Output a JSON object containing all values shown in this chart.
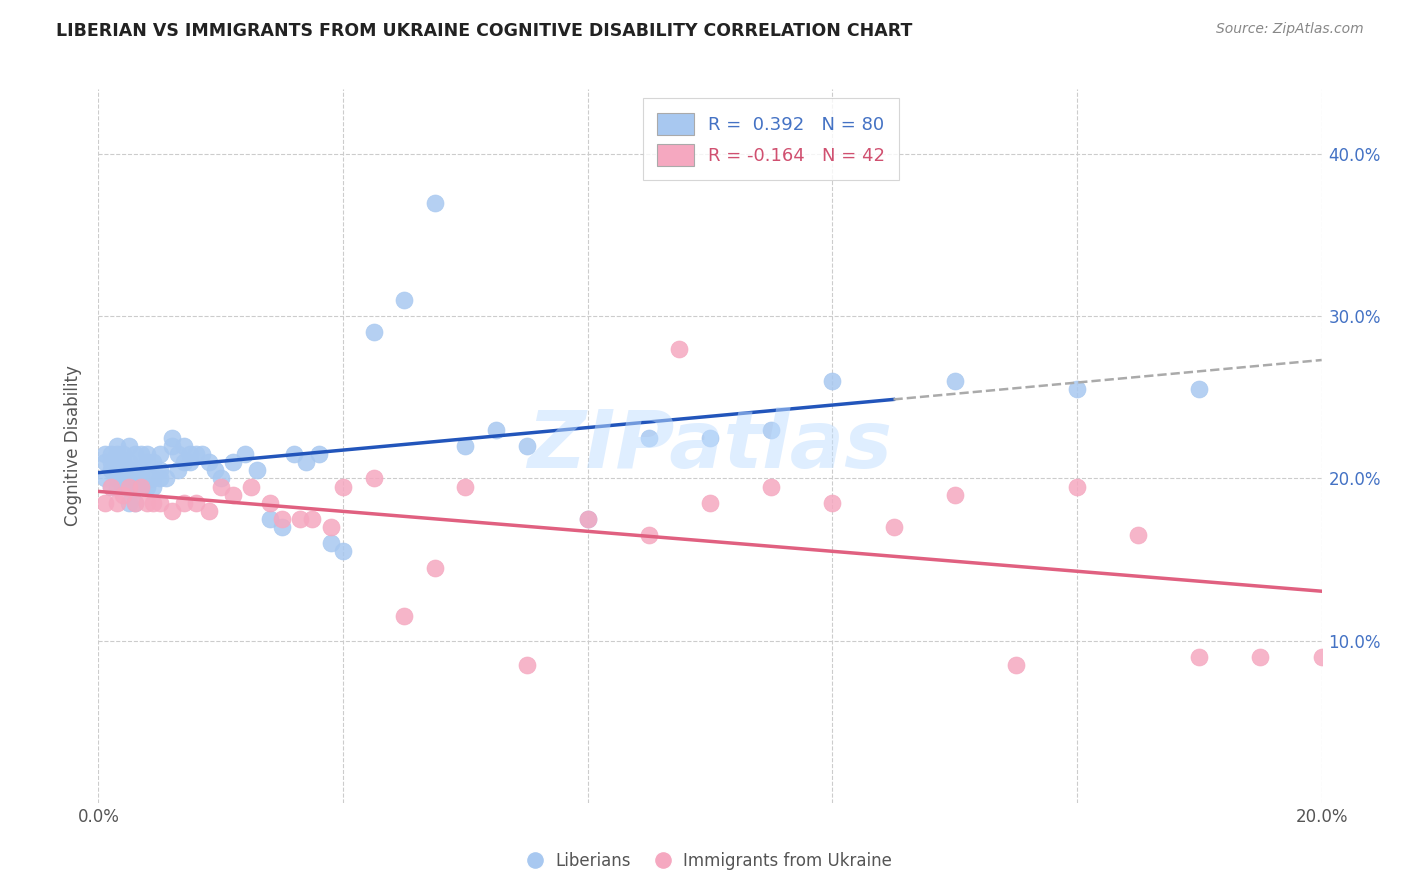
{
  "title": "LIBERIAN VS IMMIGRANTS FROM UKRAINE COGNITIVE DISABILITY CORRELATION CHART",
  "source": "Source: ZipAtlas.com",
  "ylabel": "Cognitive Disability",
  "xlim": [
    0.0,
    0.2
  ],
  "ylim": [
    0.0,
    0.44
  ],
  "x_ticks": [
    0.0,
    0.04,
    0.08,
    0.12,
    0.16,
    0.2
  ],
  "x_tick_labels": [
    "0.0%",
    "",
    "",
    "",
    "",
    "20.0%"
  ],
  "y_ticks_right": [
    0.1,
    0.2,
    0.3,
    0.4
  ],
  "y_tick_labels_right": [
    "10.0%",
    "20.0%",
    "30.0%",
    "40.0%"
  ],
  "R_blue": 0.392,
  "N_blue": 80,
  "R_pink": -0.164,
  "N_pink": 42,
  "blue_color": "#A8C8F0",
  "pink_color": "#F5A8C0",
  "blue_line_color": "#2255BB",
  "pink_line_color": "#E06080",
  "legend_label_blue": "Liberians",
  "legend_label_pink": "Immigrants from Ukraine",
  "watermark": "ZIPatlas",
  "blue_x": [
    0.001,
    0.001,
    0.001,
    0.002,
    0.002,
    0.002,
    0.002,
    0.003,
    0.003,
    0.003,
    0.003,
    0.003,
    0.004,
    0.004,
    0.004,
    0.004,
    0.004,
    0.005,
    0.005,
    0.005,
    0.005,
    0.005,
    0.005,
    0.006,
    0.006,
    0.006,
    0.006,
    0.006,
    0.007,
    0.007,
    0.007,
    0.007,
    0.008,
    0.008,
    0.008,
    0.008,
    0.009,
    0.009,
    0.009,
    0.01,
    0.01,
    0.01,
    0.011,
    0.012,
    0.012,
    0.013,
    0.013,
    0.014,
    0.014,
    0.015,
    0.015,
    0.016,
    0.017,
    0.018,
    0.019,
    0.02,
    0.022,
    0.024,
    0.026,
    0.028,
    0.03,
    0.032,
    0.034,
    0.036,
    0.038,
    0.04,
    0.045,
    0.05,
    0.055,
    0.06,
    0.065,
    0.07,
    0.08,
    0.09,
    0.1,
    0.11,
    0.12,
    0.14,
    0.16,
    0.18
  ],
  "blue_y": [
    0.2,
    0.21,
    0.215,
    0.195,
    0.205,
    0.21,
    0.215,
    0.195,
    0.2,
    0.205,
    0.215,
    0.22,
    0.195,
    0.2,
    0.205,
    0.21,
    0.215,
    0.185,
    0.195,
    0.2,
    0.205,
    0.21,
    0.22,
    0.185,
    0.195,
    0.2,
    0.205,
    0.215,
    0.195,
    0.2,
    0.205,
    0.215,
    0.195,
    0.2,
    0.21,
    0.215,
    0.195,
    0.2,
    0.21,
    0.2,
    0.205,
    0.215,
    0.2,
    0.22,
    0.225,
    0.205,
    0.215,
    0.21,
    0.22,
    0.21,
    0.215,
    0.215,
    0.215,
    0.21,
    0.205,
    0.2,
    0.21,
    0.215,
    0.205,
    0.175,
    0.17,
    0.215,
    0.21,
    0.215,
    0.16,
    0.155,
    0.29,
    0.31,
    0.37,
    0.22,
    0.23,
    0.22,
    0.175,
    0.225,
    0.225,
    0.23,
    0.26,
    0.26,
    0.255,
    0.255
  ],
  "pink_x": [
    0.001,
    0.002,
    0.003,
    0.004,
    0.005,
    0.006,
    0.007,
    0.008,
    0.009,
    0.01,
    0.012,
    0.014,
    0.016,
    0.018,
    0.02,
    0.022,
    0.025,
    0.028,
    0.03,
    0.033,
    0.035,
    0.038,
    0.04,
    0.045,
    0.05,
    0.055,
    0.06,
    0.07,
    0.08,
    0.09,
    0.095,
    0.1,
    0.11,
    0.12,
    0.13,
    0.14,
    0.15,
    0.16,
    0.17,
    0.18,
    0.19,
    0.2
  ],
  "pink_y": [
    0.185,
    0.195,
    0.185,
    0.19,
    0.195,
    0.185,
    0.195,
    0.185,
    0.185,
    0.185,
    0.18,
    0.185,
    0.185,
    0.18,
    0.195,
    0.19,
    0.195,
    0.185,
    0.175,
    0.175,
    0.175,
    0.17,
    0.195,
    0.2,
    0.115,
    0.145,
    0.195,
    0.085,
    0.175,
    0.165,
    0.28,
    0.185,
    0.195,
    0.185,
    0.17,
    0.19,
    0.085,
    0.195,
    0.165,
    0.09,
    0.09,
    0.09
  ]
}
